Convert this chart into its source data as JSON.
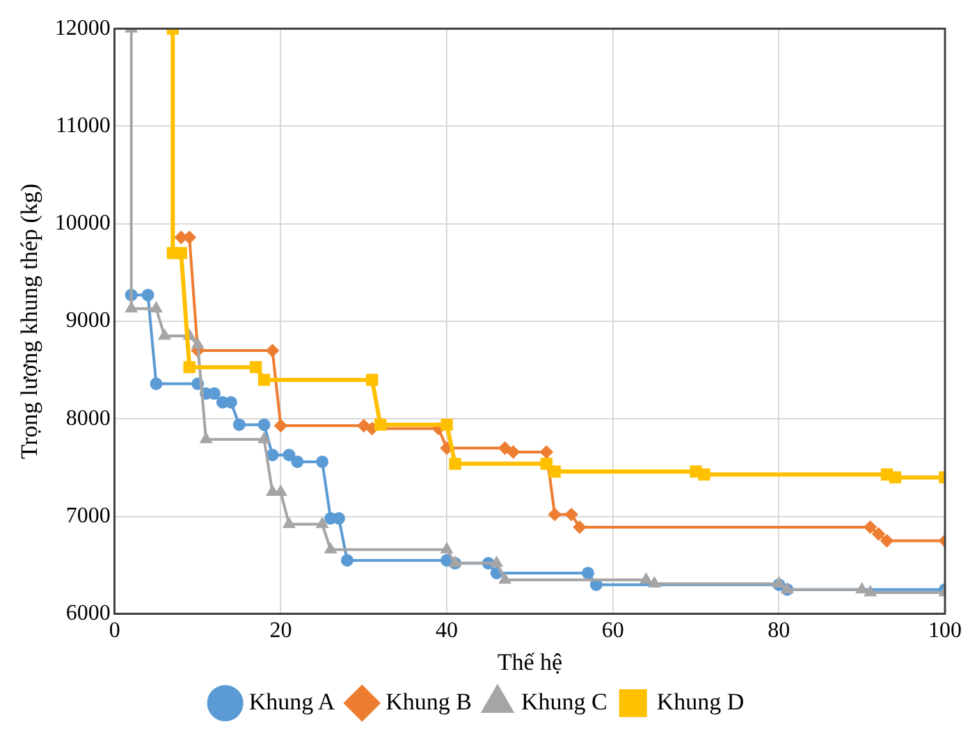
{
  "chart_data": {
    "type": "line",
    "xlabel": "Thế hệ",
    "ylabel": "Trọng lượng khung thép (kg)",
    "xlim": [
      0,
      100
    ],
    "ylim": [
      6000,
      12000
    ],
    "xticks": [
      0,
      20,
      40,
      60,
      80,
      100
    ],
    "yticks": [
      6000,
      7000,
      8000,
      9000,
      10000,
      11000,
      12000
    ],
    "grid": true,
    "legend": "bottom",
    "line_style": "solid",
    "series": [
      {
        "name": "Khung A",
        "color": "#5b9bd5",
        "marker": "circle",
        "x": [
          2,
          4,
          5,
          10,
          11,
          12,
          13,
          14,
          15,
          18,
          19,
          21,
          22,
          25,
          26,
          27,
          28,
          40,
          41,
          45,
          46,
          57,
          58,
          80,
          81,
          100
        ],
        "values": [
          9270,
          9270,
          8360,
          8360,
          8260,
          8260,
          8170,
          8170,
          7940,
          7940,
          7630,
          7630,
          7560,
          7560,
          6980,
          6980,
          6550,
          6550,
          6520,
          6520,
          6420,
          6420,
          6300,
          6300,
          6250,
          6250
        ]
      },
      {
        "name": "Khung B",
        "color": "#ed7d31",
        "marker": "diamond",
        "x": [
          8,
          9,
          10,
          19,
          20,
          30,
          31,
          39,
          40,
          47,
          48,
          52,
          53,
          55,
          56,
          91,
          92,
          93,
          100
        ],
        "values": [
          9860,
          9860,
          8700,
          8700,
          7930,
          7930,
          7900,
          7900,
          7700,
          7700,
          7660,
          7660,
          7020,
          7020,
          6890,
          6890,
          6820,
          6750,
          6750
        ]
      },
      {
        "name": "Khung C",
        "color": "#a5a5a5",
        "marker": "triangle",
        "x": [
          2,
          2,
          5,
          6,
          9,
          10,
          11,
          18,
          19,
          20,
          21,
          25,
          26,
          40,
          41,
          46,
          47,
          64,
          65,
          80,
          81,
          90,
          91,
          100
        ],
        "values": [
          12000,
          9130,
          9130,
          8850,
          8850,
          8760,
          7790,
          7790,
          7250,
          7250,
          6920,
          6920,
          6660,
          6660,
          6520,
          6520,
          6350,
          6350,
          6310,
          6310,
          6250,
          6250,
          6220,
          6220
        ]
      },
      {
        "name": "Khung D",
        "color": "#ffc000",
        "marker": "square",
        "x": [
          7,
          7,
          8,
          9,
          17,
          18,
          31,
          32,
          40,
          41,
          52,
          53,
          70,
          71,
          93,
          94,
          100
        ],
        "values": [
          12000,
          9700,
          9700,
          8530,
          8530,
          8400,
          8400,
          7940,
          7940,
          7540,
          7540,
          7460,
          7460,
          7430,
          7430,
          7400,
          7400
        ]
      }
    ]
  }
}
